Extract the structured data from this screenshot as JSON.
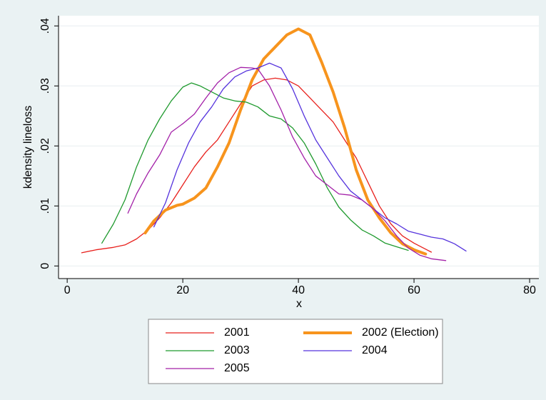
{
  "chart_data": {
    "type": "line",
    "xlabel": "x",
    "ylabel": "kdensity lineloss",
    "xlim": [
      -1.5,
      81.6
    ],
    "ylim": [
      -0.0021,
      0.0417
    ],
    "xticks": [
      0,
      20,
      40,
      60,
      80
    ],
    "yticks": [
      0,
      {
        "value": 0.01,
        "label": ".01"
      },
      {
        "value": 0.02,
        "label": ".02"
      },
      {
        "value": 0.03,
        "label": ".03"
      },
      {
        "value": 0.04,
        "label": ".04"
      }
    ],
    "grid": true,
    "legend": "bottom",
    "series": [
      {
        "name": "2001",
        "color": "#e8201c",
        "line_width": 1.3,
        "x": [
          2.5,
          5,
          8,
          10,
          12,
          14,
          16,
          18,
          20,
          22,
          24,
          26,
          28,
          30,
          32,
          34,
          36,
          38,
          40,
          42,
          44,
          46,
          48,
          50,
          52,
          54,
          56,
          58,
          60,
          62,
          63
        ],
        "values": [
          0.0022,
          0.0027,
          0.0031,
          0.0035,
          0.0045,
          0.006,
          0.008,
          0.0105,
          0.0135,
          0.0165,
          0.019,
          0.021,
          0.024,
          0.027,
          0.03,
          0.031,
          0.0313,
          0.031,
          0.03,
          0.028,
          0.026,
          0.024,
          0.021,
          0.018,
          0.014,
          0.01,
          0.007,
          0.005,
          0.0038,
          0.0028,
          0.0023
        ]
      },
      {
        "name": "2002 (Election)",
        "color": "#f7941d",
        "line_width": 4,
        "x": [
          13.5,
          15,
          17,
          19,
          20,
          22,
          24,
          26,
          28,
          30,
          32,
          34,
          36,
          38,
          40,
          42,
          44,
          46,
          48,
          50,
          52,
          54,
          56,
          58,
          60,
          62
        ],
        "values": [
          0.0055,
          0.0075,
          0.0093,
          0.0101,
          0.0103,
          0.0113,
          0.013,
          0.0165,
          0.0205,
          0.026,
          0.031,
          0.0345,
          0.0365,
          0.0385,
          0.0395,
          0.0385,
          0.034,
          0.029,
          0.023,
          0.016,
          0.011,
          0.008,
          0.0055,
          0.0037,
          0.0027,
          0.002
        ]
      },
      {
        "name": "2003",
        "color": "#1f9a2e",
        "line_width": 1.3,
        "x": [
          6,
          8,
          10,
          12,
          14,
          16,
          18,
          20,
          21.5,
          23,
          25,
          27,
          29,
          31,
          33,
          35,
          37,
          39,
          41,
          43,
          45,
          47,
          49,
          51,
          53,
          55,
          57,
          59
        ],
        "values": [
          0.0038,
          0.007,
          0.011,
          0.0165,
          0.021,
          0.0245,
          0.0275,
          0.0298,
          0.0305,
          0.03,
          0.029,
          0.028,
          0.0275,
          0.0273,
          0.0265,
          0.025,
          0.0245,
          0.023,
          0.0205,
          0.017,
          0.013,
          0.0098,
          0.0077,
          0.006,
          0.005,
          0.0038,
          0.0032,
          0.0026
        ]
      },
      {
        "name": "2004",
        "color": "#5533dd",
        "line_width": 1.3,
        "x": [
          15,
          17,
          19,
          21,
          23,
          25,
          27,
          29,
          31,
          33,
          35,
          37,
          39,
          41,
          43,
          45,
          47,
          49,
          51,
          53,
          55,
          57,
          59,
          61,
          63,
          65,
          67,
          69
        ],
        "values": [
          0.0065,
          0.0105,
          0.016,
          0.0205,
          0.024,
          0.0265,
          0.0295,
          0.0315,
          0.0325,
          0.033,
          0.0338,
          0.033,
          0.0295,
          0.025,
          0.021,
          0.018,
          0.015,
          0.0125,
          0.011,
          0.0095,
          0.008,
          0.007,
          0.0058,
          0.0053,
          0.0048,
          0.0045,
          0.0037,
          0.0025
        ]
      },
      {
        "name": "2005",
        "color": "#a320a8",
        "line_width": 1.3,
        "x": [
          10.5,
          12,
          14,
          16,
          18,
          20,
          22,
          24,
          26,
          28,
          30,
          32,
          33,
          35,
          37,
          39,
          41,
          43,
          45,
          47,
          49,
          51,
          53,
          55,
          57,
          59,
          61,
          63,
          65.5
        ],
        "values": [
          0.0088,
          0.012,
          0.0155,
          0.0185,
          0.0223,
          0.0237,
          0.0253,
          0.028,
          0.0305,
          0.0322,
          0.0331,
          0.033,
          0.0328,
          0.03,
          0.026,
          0.0215,
          0.018,
          0.015,
          0.0135,
          0.012,
          0.0118,
          0.011,
          0.0095,
          0.0075,
          0.005,
          0.003,
          0.0018,
          0.0012,
          0.0009
        ]
      }
    ]
  }
}
